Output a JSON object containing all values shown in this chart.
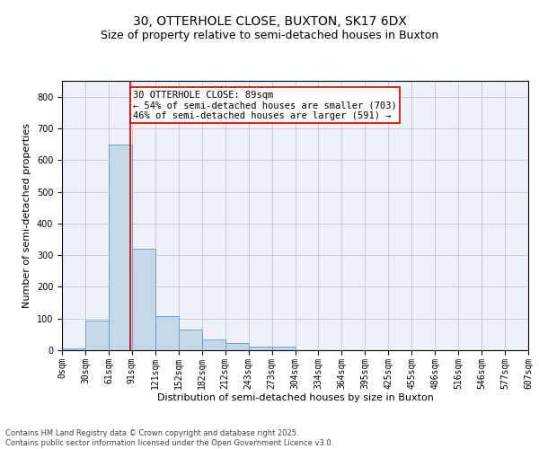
{
  "title_line1": "30, OTTERHOLE CLOSE, BUXTON, SK17 6DX",
  "title_line2": "Size of property relative to semi-detached houses in Buxton",
  "xlabel": "Distribution of semi-detached houses by size in Buxton",
  "ylabel": "Number of semi-detached properties",
  "footnote": "Contains HM Land Registry data © Crown copyright and database right 2025.\nContains public sector information licensed under the Open Government Licence v3.0.",
  "bin_labels": [
    "0sqm",
    "30sqm",
    "61sqm",
    "91sqm",
    "121sqm",
    "152sqm",
    "182sqm",
    "212sqm",
    "243sqm",
    "273sqm",
    "304sqm",
    "334sqm",
    "364sqm",
    "395sqm",
    "425sqm",
    "455sqm",
    "486sqm",
    "516sqm",
    "546sqm",
    "577sqm",
    "607sqm"
  ],
  "bar_values": [
    5,
    93,
    650,
    320,
    108,
    65,
    35,
    22,
    12,
    10,
    0,
    0,
    0,
    0,
    0,
    0,
    0,
    0,
    0,
    0
  ],
  "bar_color": "#c5d8e8",
  "bar_edge_color": "#5b9bd5",
  "vline_color": "#cc0000",
  "annotation_box_color": "#cc0000",
  "ylim": [
    0,
    850
  ],
  "yticks": [
    0,
    100,
    200,
    300,
    400,
    500,
    600,
    700,
    800
  ],
  "grid_color": "#c0c8d8",
  "background_color": "#eef2f8",
  "title_fontsize": 10,
  "subtitle_fontsize": 9,
  "axis_label_fontsize": 8,
  "tick_fontsize": 7,
  "annotation_fontsize": 7.5,
  "footnote_fontsize": 6
}
